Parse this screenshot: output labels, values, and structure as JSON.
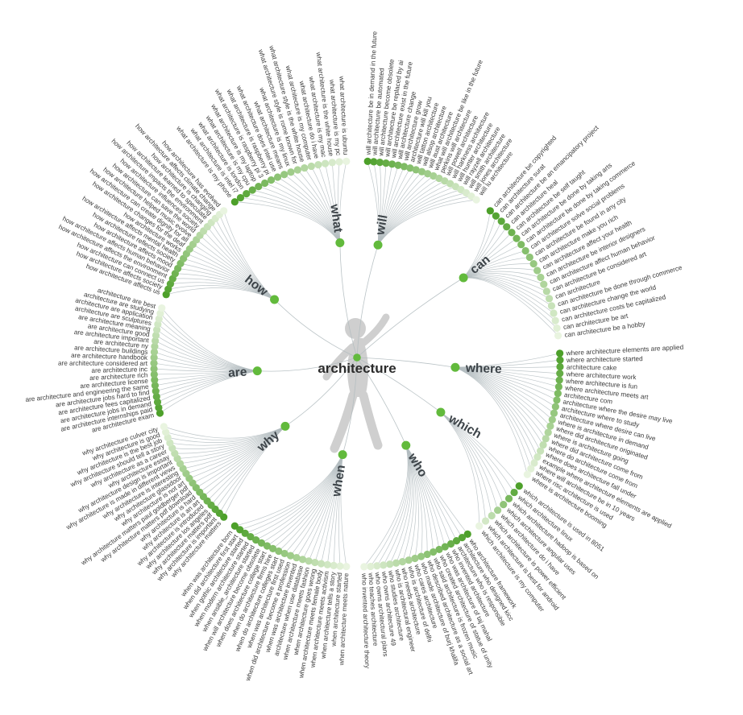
{
  "center_label": "architecture",
  "colors": {
    "dot_dark": "#4da02a",
    "dot_light": "#e9f4e0",
    "category_dot": "#62ba3c",
    "center_dot": "#62ba3c",
    "line": "#b3bcc0",
    "leaf_text": "#3a3a3a",
    "category_text": "#3d4449",
    "silhouette": "#cdcdcd"
  },
  "branches": [
    {
      "label": "will",
      "start": -87,
      "end": -54,
      "label_angle": -80,
      "label_radius": 150,
      "leaves": [
        "will architecture be in demand in the future",
        "will architecture be automated",
        "will architecture become obsolete",
        "will architecture be replaced by ai",
        "will architecture exist in the future",
        "will architecture change",
        "will architecture grow",
        "architecture will kill you",
        "will tatton architecture",
        "will alsop architecture",
        "will aust architecture",
        "what will architecture be like in the future",
        "perkins will architecture",
        "will powell architecture",
        "will harkness architecture",
        "will hunter architecture",
        "will rayzell architecture",
        "will smith architecture",
        "will jones architecture",
        "will lu architecture"
      ]
    },
    {
      "label": "can",
      "start": -49,
      "end": -8,
      "label_angle": -39,
      "label_radius": 170,
      "leaves": [
        "can architecture be copyrighted",
        "can architecture surat",
        "can architecture be an emancipatory project",
        "can architecture heal",
        "can architecture be self taught",
        "can architecture be done by taking arts",
        "can architecture be done by taking commerce",
        "can architecture solve social problems",
        "can architecture be found in any city",
        "can architecture make you rich",
        "can architecture affect your health",
        "can architecture be interior designers",
        "can architecture affect human behavior",
        "can architecture be considered art",
        "can architecture",
        "can architecture be done through commerce",
        "can architecture change the world",
        "can architecture costs be capitalized",
        "can architecture be art",
        "can architecture be a hobby"
      ]
    },
    {
      "label": "where",
      "start": -3,
      "end": 33,
      "label_angle": 2,
      "label_radius": 122,
      "leaves": [
        "where architecture elements are applied",
        "where architecture started",
        "architecture cake",
        "where architecture work",
        "where architecture is fun",
        "where architecture meets art",
        "architecture com",
        "architecture where the desire may live",
        "architecture where to study",
        "architecture where desire can live",
        "where is architecture in demand",
        "where did architecture originated",
        "where is architecture going",
        "where did architecture come from",
        "where do architecture come from",
        "where does architecture fall under",
        "example where architecture elements are applied",
        "where will architecture be in 10 years",
        "where risc architecture is used",
        "where is architecture booming"
      ]
    },
    {
      "label": "which",
      "start": 37,
      "end": 53,
      "label_angle": 30,
      "label_radius": 120,
      "leaves": [
        "which architecture is used in 8051",
        "which architecture linux",
        "which architecture hadoop is based on",
        "which architecture angular uses",
        "which architecture do i have",
        "which architecture is power efficient",
        "which architecture is best for android",
        "which architecture is my computer"
      ]
    },
    {
      "label": "who",
      "start": 57,
      "end": 88,
      "label_angle": 59,
      "label_radius": 118,
      "leaves": [
        "who architecture framework",
        "architecture who designed kicc",
        "architecture who is responsible",
        "who invented architecture",
        "who was architecture of taj mahal",
        "who created architecture of statue of unity",
        "who said architecture is frozen music",
        "who described architecture as a social art",
        "who made architecture of burj khalifa",
        "who cares architecture",
        "who is architecture of delhi",
        "who needs architecture",
        "who is architectural engineer",
        "who studies architecture",
        "who owns architecture 49",
        "who owns architectural plans",
        "who teaches architecture",
        "who invented architecture theory"
      ]
    },
    {
      "label": "when",
      "start": 93,
      "end": 127,
      "label_angle": 99,
      "label_radius": 114,
      "reverse_gradient": true,
      "leaves": [
        "when architecture meets nature",
        "when architecture started",
        "when architecture tells a story",
        "when architecture meets activism",
        "when architecture meets female body",
        "when architecture goes wrong",
        "when architecture meets fashion",
        "architecture when use database",
        "when was architecture invented",
        "when did architecture become a profession",
        "when was architecture first used",
        "when do architecture colleges start",
        "when do architecture firms hire",
        "when does architecture college start",
        "when will architecture become obsolete",
        "when ansible_architecture started",
        "when modern architecture started",
        "when gothic architecture started",
        "when did architecture first start",
        "when was architecture born"
      ]
    },
    {
      "label": "why",
      "start": 131,
      "end": 162,
      "label_angle": 139,
      "label_radius": 118,
      "leaves": [
        "why architecture matters",
        "why architecture is important",
        "why architecture matters pdf",
        "why architecture los angeles",
        "why architecture is introduced",
        "why architecture is an art",
        "why architecture is hard",
        "why architecture matters pdf download",
        "why architecture matters paul goldberger pdf",
        "why architecture is not art",
        "why architecture glassdoor",
        "why architecture is interesting",
        "why architecture is made in different views",
        "why architecture design is important",
        "why architecture essay",
        "why architecture as a career",
        "why architecture should tell a story",
        "why architecture is the best job",
        "why architecture is good",
        "why architecture culver city"
      ]
    },
    {
      "label": "are",
      "start": 166,
      "end": 196,
      "label_angle": 176,
      "label_radius": 124,
      "leaves": [
        "are architecture exam",
        "are architecture internships paid",
        "are architecture jobs in demand",
        "are architecture fees capitalized",
        "are architecture jobs hard to find",
        "are architecture and engineering the same",
        "are architecture license",
        "are architecture rich",
        "are architecture inc",
        "are architecture considered art",
        "are architecture handbook",
        "are architecture buildings",
        "are architecture ny",
        "are architecture important",
        "are architecture good",
        "are architecture meaning",
        "architecture are sculptures",
        "architecture are application",
        "architecture are studying",
        "architecture are best"
      ]
    },
    {
      "label": "how",
      "start": 200,
      "end": 229,
      "label_angle": 218,
      "label_radius": 130,
      "leaves": [
        "how architecture affects us",
        "how architecture affects society",
        "how architecture can connect us",
        "how architecture affects the environment",
        "how architecture affects human behavior",
        "how architecture affects mood",
        "how architecture reflects society",
        "how architecture affects mental health",
        "how architecture works",
        "how architecture changes for the deaf",
        "how architecture can create dignity for all",
        "how architecture helped music evolve",
        "how architecture can save the world",
        "how architecture influences society",
        "how architecture impacts the environment",
        "how architecture learned to speculate",
        "how architecture is changing",
        "how architecture affects climate change",
        "how architecture has evolved"
      ]
    },
    {
      "label": "what",
      "start": 233,
      "end": 267,
      "label_angle": 262,
      "label_radius": 152,
      "leaves": [
        "what architecture is my phone",
        "what architecture is intel i7",
        "what architecture is london",
        "what architecture is my cpu",
        "what architecture is my laptop",
        "what architecture is raspberry pi 3",
        "what architecture is raspberry pi",
        "what architecture does intel use",
        "what architecture means",
        "what architecture is my linux",
        "what architecture style is rome known for",
        "what architecture style is the white house",
        "what architecture is my computer",
        "what architecture do i have",
        "what architecture is my mac",
        "what architecture is the white house",
        "what architecture is my pc",
        "what architecture is ubuntu"
      ]
    }
  ]
}
